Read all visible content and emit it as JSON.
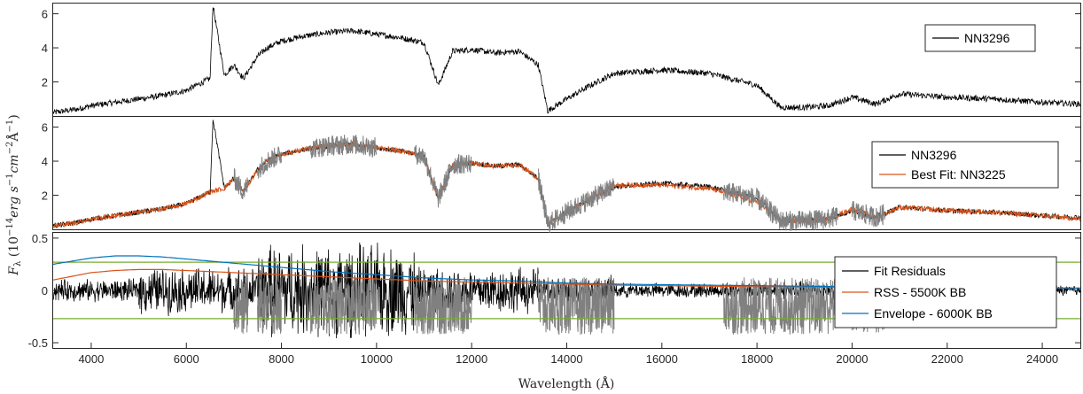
{
  "figure": {
    "xlabel": "Wavelength (Å)",
    "ylabel_base": "F",
    "ylabel_sub": "λ",
    "ylabel_rest": " (10",
    "ylabel_exp1": "−14",
    "ylabel_mid": "erg s",
    "ylabel_exp2": "−1",
    "ylabel_mid2": "cm",
    "ylabel_exp3": "−2",
    "ylabel_mid3": "Å",
    "ylabel_exp4": "−1",
    "ylabel_end": ")"
  },
  "colors": {
    "spectrum": "#000000",
    "fit": "#d95319",
    "masked": "#808080",
    "rss": "#d95319",
    "envelope": "#0072bd",
    "threshold": "#77ac30"
  },
  "chart_data": [
    {
      "type": "line",
      "panel": "top",
      "xlim": [
        3200,
        24800
      ],
      "ylim": [
        0,
        6.6
      ],
      "yticks": [
        "2",
        "4",
        "6"
      ],
      "ytick_values": [
        2,
        4,
        6
      ],
      "legend": [
        "NN3296"
      ],
      "legend_position": "top-right",
      "series": [
        {
          "name": "NN3296",
          "x": [
            3200,
            3700,
            4000,
            4500,
            5000,
            5500,
            6000,
            6500,
            6560,
            6800,
            7000,
            7200,
            7500,
            7700,
            8000,
            8500,
            9000,
            9500,
            10000,
            10500,
            11000,
            11300,
            11600,
            12000,
            12500,
            13000,
            13400,
            13600,
            14000,
            14500,
            15000,
            16000,
            17000,
            18000,
            18500,
            19000,
            19500,
            20000,
            20500,
            21000,
            22000,
            23000,
            24000,
            24800
          ],
          "y": [
            0.2,
            0.4,
            0.6,
            0.8,
            1.0,
            1.2,
            1.5,
            2.2,
            6.5,
            2.4,
            3.0,
            2.2,
            3.5,
            4.0,
            4.4,
            4.7,
            4.9,
            5.0,
            4.8,
            4.6,
            4.3,
            1.8,
            3.8,
            3.9,
            3.7,
            3.8,
            3.0,
            0.3,
            1.0,
            1.8,
            2.5,
            2.7,
            2.5,
            1.8,
            0.5,
            0.5,
            0.6,
            1.1,
            0.7,
            1.3,
            1.1,
            1.0,
            0.8,
            0.7
          ]
        }
      ]
    },
    {
      "type": "line",
      "panel": "middle",
      "xlim": [
        3200,
        24800
      ],
      "ylim": [
        0,
        6.6
      ],
      "yticks": [
        "2",
        "4",
        "6"
      ],
      "ytick_values": [
        2,
        4,
        6
      ],
      "legend": [
        "NN3296",
        "Best Fit: NN3225"
      ],
      "legend_position": "top-right",
      "series": [
        {
          "name": "NN3296",
          "x": [
            3200,
            3700,
            4000,
            4500,
            5000,
            5500,
            6000,
            6500,
            6560,
            6800,
            7000,
            7200,
            7500,
            7700,
            8000,
            8500,
            9000,
            9500,
            10000,
            10500,
            11000,
            11300,
            11600,
            12000,
            12500,
            13000,
            13400,
            13600,
            14000,
            14500,
            15000,
            16000,
            17000,
            18000,
            18500,
            19000,
            19500,
            20000,
            20500,
            21000,
            22000,
            23000,
            24000,
            24800
          ],
          "y": [
            0.2,
            0.4,
            0.6,
            0.8,
            1.0,
            1.2,
            1.5,
            2.2,
            6.5,
            2.4,
            3.0,
            2.2,
            3.5,
            4.0,
            4.4,
            4.7,
            4.9,
            5.0,
            4.8,
            4.6,
            4.3,
            1.8,
            3.8,
            3.9,
            3.7,
            3.8,
            3.0,
            0.3,
            1.0,
            1.8,
            2.5,
            2.7,
            2.5,
            1.8,
            0.5,
            0.5,
            0.6,
            1.1,
            0.7,
            1.3,
            1.1,
            1.0,
            0.8,
            0.7
          ]
        },
        {
          "name": "Best Fit: NN3225",
          "x": [
            3200,
            3700,
            4000,
            4500,
            5000,
            5500,
            6000,
            6500,
            6800,
            7000,
            7200,
            7500,
            7700,
            8000,
            8500,
            9000,
            9500,
            10000,
            10500,
            11000,
            11300,
            11600,
            12000,
            12500,
            13000,
            13400,
            13600,
            14000,
            14500,
            15000,
            16000,
            17000,
            18000,
            18500,
            19000,
            19500,
            20000,
            20500,
            21000,
            22000,
            23000,
            24000,
            24800
          ],
          "y": [
            0.2,
            0.4,
            0.6,
            0.8,
            1.0,
            1.2,
            1.5,
            2.2,
            2.4,
            3.0,
            2.2,
            3.5,
            4.0,
            4.4,
            4.7,
            4.9,
            5.0,
            4.8,
            4.6,
            4.3,
            1.8,
            3.8,
            3.9,
            3.7,
            3.8,
            3.0,
            0.3,
            1.0,
            1.8,
            2.6,
            2.6,
            2.4,
            1.6,
            0.5,
            0.5,
            0.6,
            1.2,
            0.7,
            1.3,
            1.1,
            1.0,
            0.8,
            0.6
          ]
        }
      ],
      "masked_ranges": [
        [
          7000,
          7300
        ],
        [
          7500,
          8000
        ],
        [
          8600,
          9300
        ],
        [
          9300,
          10000
        ],
        [
          10800,
          12000
        ],
        [
          13400,
          15000
        ],
        [
          17300,
          19700
        ],
        [
          20000,
          20700
        ]
      ]
    },
    {
      "type": "line",
      "panel": "bottom",
      "xlim": [
        3200,
        24800
      ],
      "ylim": [
        -0.55,
        0.55
      ],
      "yticks": [
        "-0.5",
        "0",
        "0.5"
      ],
      "ytick_values": [
        -0.5,
        0,
        0.5
      ],
      "xticks": [
        "4000",
        "6000",
        "8000",
        "10000",
        "12000",
        "14000",
        "16000",
        "18000",
        "20000",
        "22000",
        "24000"
      ],
      "xtick_values": [
        4000,
        6000,
        8000,
        10000,
        12000,
        14000,
        16000,
        18000,
        20000,
        22000,
        24000
      ],
      "legend": [
        "Fit Residuals",
        "RSS - 5500K BB",
        "Envelope - 6000K BB"
      ],
      "legend_position": "bottom-right",
      "threshold_lines": [
        0.27,
        -0.27
      ],
      "series": [
        {
          "name": "RSS - 5500K BB",
          "x": [
            3200,
            4000,
            4500,
            5000,
            5500,
            6000,
            7000,
            8000,
            9000,
            10000,
            11000,
            12000,
            13000,
            14000,
            15000,
            16000,
            18000,
            20000,
            22000,
            24000,
            24800
          ],
          "y": [
            0.1,
            0.17,
            0.19,
            0.2,
            0.2,
            0.19,
            0.17,
            0.15,
            0.13,
            0.11,
            0.09,
            0.08,
            0.07,
            0.06,
            0.05,
            0.045,
            0.035,
            0.03,
            0.025,
            0.02,
            0.02
          ]
        },
        {
          "name": "Envelope - 6000K BB",
          "x": [
            3200,
            4000,
            4500,
            5000,
            5500,
            6000,
            7000,
            8000,
            9000,
            10000,
            11000,
            12000,
            13000,
            14000,
            15000,
            16000,
            18000,
            20000,
            22000,
            24000,
            24800
          ],
          "y": [
            0.25,
            0.31,
            0.33,
            0.33,
            0.32,
            0.3,
            0.26,
            0.22,
            0.18,
            0.15,
            0.12,
            0.1,
            0.09,
            0.07,
            0.06,
            0.055,
            0.045,
            0.035,
            0.03,
            0.025,
            0.022
          ]
        }
      ],
      "residual_noise_levels": [
        {
          "x": [
            3200,
            5000
          ],
          "amplitude": 0.12
        },
        {
          "x": [
            5000,
            7500
          ],
          "amplitude": 0.25
        },
        {
          "x": [
            7500,
            10800
          ],
          "amplitude": 0.5
        },
        {
          "x": [
            10800,
            13400
          ],
          "amplitude": 0.25
        },
        {
          "x": [
            13400,
            15000
          ],
          "amplitude": 0.15
        },
        {
          "x": [
            15000,
            17300
          ],
          "amplitude": 0.08
        },
        {
          "x": [
            17300,
            19700
          ],
          "amplitude": 0.1
        },
        {
          "x": [
            19700,
            24800
          ],
          "amplitude": 0.06
        }
      ]
    }
  ]
}
